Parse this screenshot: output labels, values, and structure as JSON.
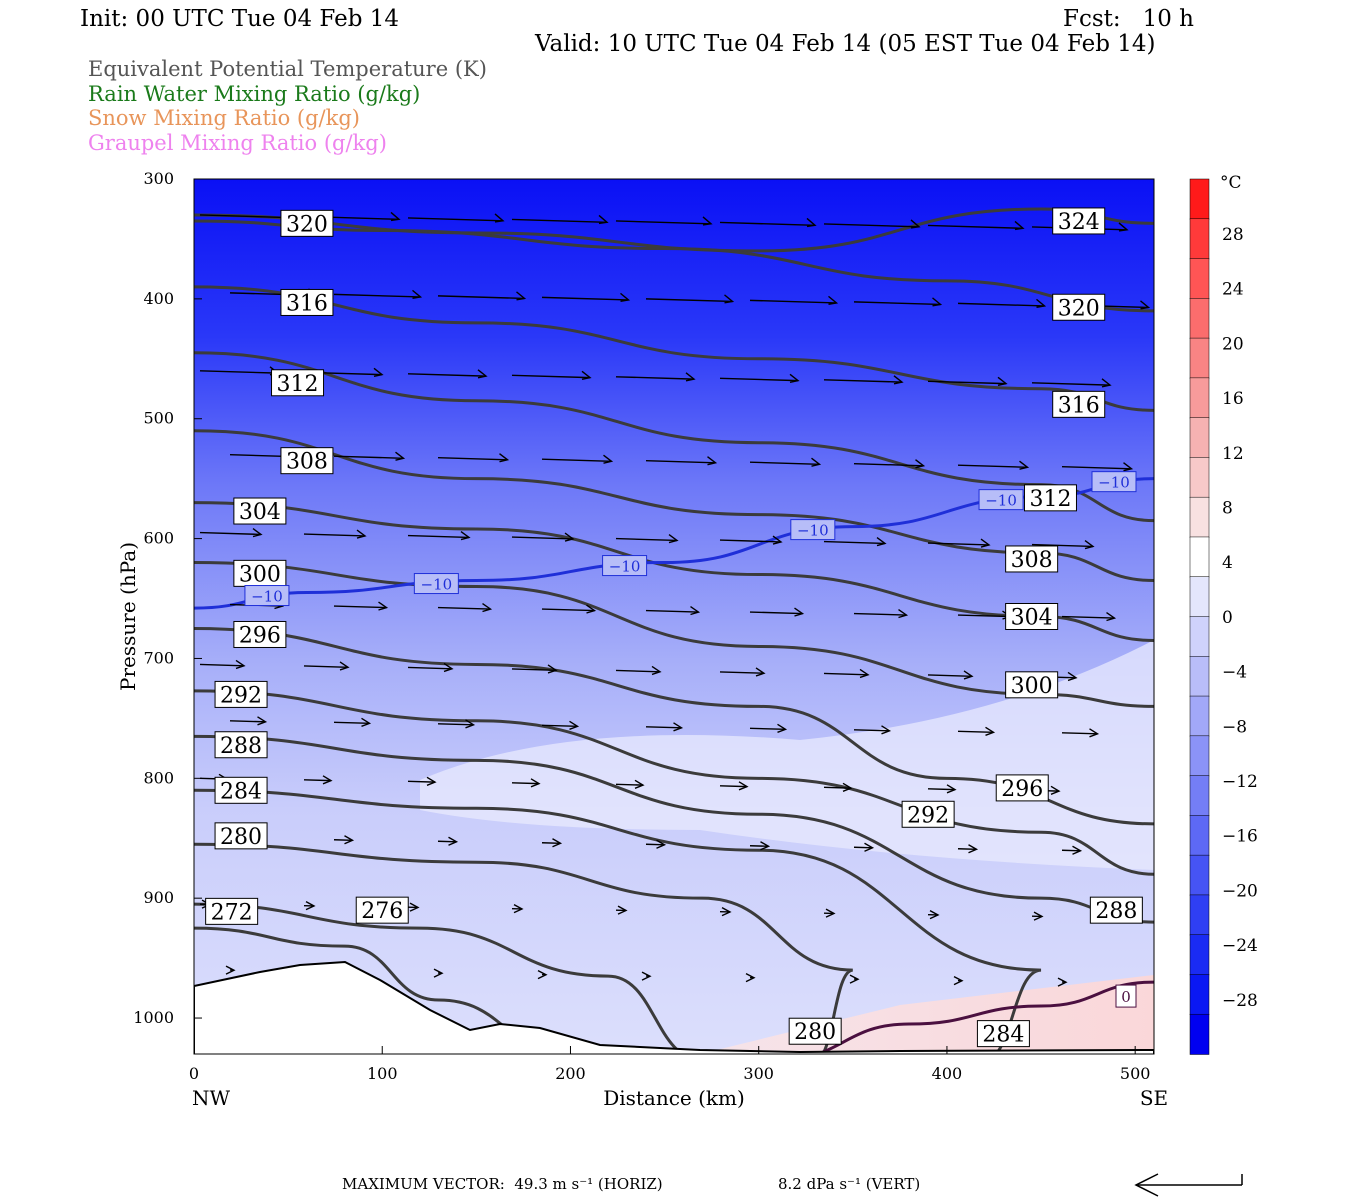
{
  "header": {
    "init": "Init: 00 UTC Tue 04 Feb 14",
    "fcst": "Fcst:   10 h",
    "valid": "Valid: 10 UTC Tue 04 Feb 14 (05 EST Tue 04 Feb 14)"
  },
  "legend": [
    {
      "label": "Equivalent Potential Temperature (K)",
      "color": "#555555"
    },
    {
      "label": "Rain Water Mixing Ratio (g/kg)",
      "color": "#1a7a1a"
    },
    {
      "label": "Snow Mixing Ratio (g/kg)",
      "color": "#e8955a"
    },
    {
      "label": "Graupel Mixing Ratio (g/kg)",
      "color": "#ee82ee"
    }
  ],
  "chart_data": {
    "type": "cross-section",
    "xlabel": "Distance (km)",
    "ylabel": "Pressure (hPa)",
    "xlim": [
      0,
      510
    ],
    "ylim": [
      1030,
      300
    ],
    "x_ticks": [
      "0",
      "100",
      "200",
      "300",
      "400",
      "500"
    ],
    "y_ticks": [
      "300",
      "400",
      "500",
      "600",
      "700",
      "800",
      "900",
      "1000"
    ],
    "x_end_labels": {
      "left": "NW",
      "right": "SE"
    },
    "colorbar": {
      "unit": "°C",
      "ticks": [
        "28",
        "24",
        "20",
        "16",
        "12",
        "8",
        "4",
        "0",
        "−4",
        "−8",
        "−12",
        "−16",
        "−20",
        "−24",
        "−28"
      ]
    },
    "theta_e_contours": [
      {
        "label": "324",
        "points": [
          [
            0,
            330
          ],
          [
            150,
            345
          ],
          [
            300,
            360
          ],
          [
            450,
            325
          ],
          [
            510,
            337
          ]
        ],
        "labels_at": [
          [
            470,
            335
          ]
        ]
      },
      {
        "label": "320",
        "points": [
          [
            0,
            335
          ],
          [
            100,
            343
          ],
          [
            250,
            358
          ],
          [
            400,
            385
          ],
          [
            510,
            410
          ]
        ],
        "labels_at": [
          [
            60,
            337
          ],
          [
            470,
            407
          ]
        ]
      },
      {
        "label": "316",
        "points": [
          [
            0,
            390
          ],
          [
            150,
            420
          ],
          [
            300,
            450
          ],
          [
            450,
            475
          ],
          [
            510,
            493
          ]
        ],
        "labels_at": [
          [
            60,
            403
          ],
          [
            470,
            488
          ]
        ]
      },
      {
        "label": "312",
        "points": [
          [
            0,
            445
          ],
          [
            150,
            485
          ],
          [
            300,
            520
          ],
          [
            450,
            555
          ],
          [
            510,
            585
          ]
        ],
        "labels_at": [
          [
            55,
            470
          ],
          [
            455,
            566
          ]
        ]
      },
      {
        "label": "308",
        "points": [
          [
            0,
            510
          ],
          [
            150,
            550
          ],
          [
            300,
            580
          ],
          [
            450,
            612
          ],
          [
            510,
            635
          ]
        ],
        "labels_at": [
          [
            60,
            535
          ],
          [
            445,
            617
          ]
        ]
      },
      {
        "label": "304",
        "points": [
          [
            0,
            570
          ],
          [
            150,
            592
          ],
          [
            300,
            630
          ],
          [
            450,
            665
          ],
          [
            510,
            685
          ]
        ],
        "labels_at": [
          [
            35,
            577
          ],
          [
            445,
            665
          ]
        ]
      },
      {
        "label": "300",
        "points": [
          [
            0,
            620
          ],
          [
            150,
            640
          ],
          [
            300,
            690
          ],
          [
            450,
            730
          ],
          [
            510,
            740
          ]
        ],
        "labels_at": [
          [
            35,
            629
          ],
          [
            445,
            722
          ]
        ]
      },
      {
        "label": "296",
        "points": [
          [
            0,
            675
          ],
          [
            150,
            705
          ],
          [
            300,
            740
          ],
          [
            400,
            800
          ],
          [
            510,
            838
          ]
        ],
        "labels_at": [
          [
            35,
            680
          ],
          [
            440,
            808
          ]
        ]
      },
      {
        "label": "292",
        "points": [
          [
            0,
            727
          ],
          [
            150,
            752
          ],
          [
            300,
            800
          ],
          [
            450,
            845
          ],
          [
            510,
            880
          ]
        ],
        "labels_at": [
          [
            25,
            730
          ],
          [
            390,
            830
          ]
        ]
      },
      {
        "label": "288",
        "points": [
          [
            0,
            765
          ],
          [
            150,
            785
          ],
          [
            300,
            830
          ],
          [
            450,
            900
          ],
          [
            510,
            920
          ]
        ],
        "labels_at": [
          [
            25,
            772
          ],
          [
            490,
            910
          ]
        ]
      },
      {
        "label": "284",
        "points": [
          [
            0,
            810
          ],
          [
            150,
            825
          ],
          [
            300,
            860
          ],
          [
            450,
            960
          ],
          [
            420,
            1035
          ]
        ],
        "labels_at": [
          [
            25,
            810
          ],
          [
            430,
            1013
          ]
        ]
      },
      {
        "label": "280",
        "points": [
          [
            0,
            855
          ],
          [
            150,
            870
          ],
          [
            270,
            900
          ],
          [
            350,
            960
          ],
          [
            330,
            1035
          ]
        ],
        "labels_at": [
          [
            25,
            848
          ],
          [
            330,
            1011
          ]
        ]
      },
      {
        "label": "276",
        "points": [
          [
            0,
            905
          ],
          [
            120,
            925
          ],
          [
            220,
            965
          ],
          [
            270,
            1035
          ]
        ],
        "labels_at": [
          [
            100,
            910
          ]
        ]
      },
      {
        "label": "272",
        "points": [
          [
            0,
            925
          ],
          [
            80,
            940
          ],
          [
            130,
            985
          ],
          [
            200,
            1030
          ]
        ],
        "labels_at": [
          [
            20,
            911
          ]
        ]
      }
    ],
    "temperature_contour_-10": {
      "label": "−10",
      "points": [
        [
          0,
          658
        ],
        [
          60,
          645
        ],
        [
          150,
          635
        ],
        [
          250,
          620
        ],
        [
          350,
          590
        ],
        [
          450,
          565
        ],
        [
          510,
          550
        ]
      ]
    },
    "temperature_contour_0": {
      "label": "0",
      "points": [
        [
          310,
          1035
        ],
        [
          380,
          1005
        ],
        [
          450,
          990
        ],
        [
          510,
          970
        ]
      ]
    }
  },
  "footer": {
    "max_vector": "MAXIMUM VECTOR:  49.3 m s⁻¹ (HORIZ)",
    "vert": "8.2 dPa s⁻¹ (VERT)"
  }
}
